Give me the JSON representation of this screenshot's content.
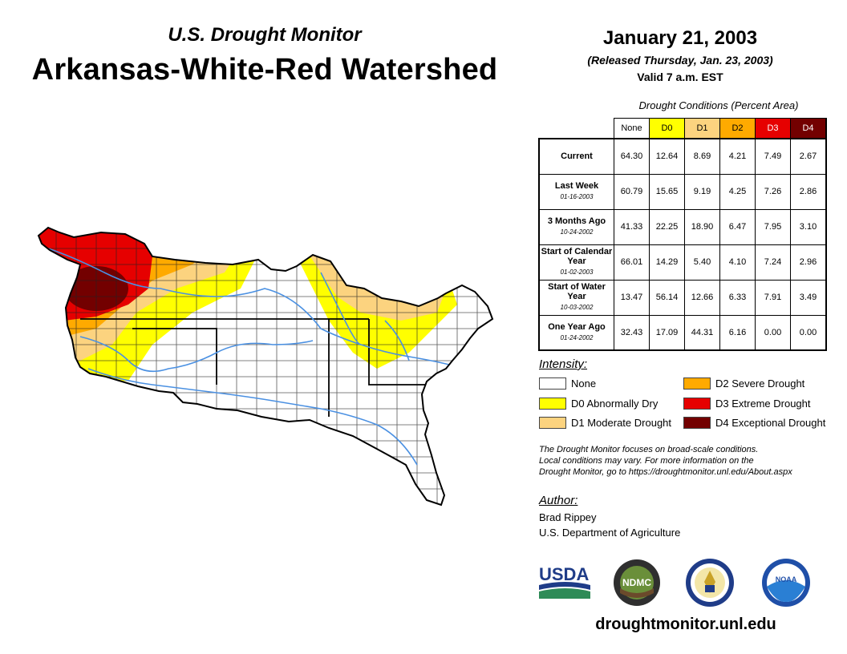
{
  "header": {
    "subtitle": "U.S. Drought Monitor",
    "region": "Arkansas-White-Red Watershed",
    "date": "January 21, 2003",
    "released": "(Released Thursday, Jan. 23, 2003)",
    "valid": "Valid 7 a.m. EST"
  },
  "table": {
    "caption": "Drought Conditions (Percent Area)",
    "columns": [
      {
        "label": "None",
        "color": "#ffffff",
        "text_color": "#000000"
      },
      {
        "label": "D0",
        "color": "#ffff00",
        "text_color": "#000000"
      },
      {
        "label": "D1",
        "color": "#fcd37f",
        "text_color": "#000000"
      },
      {
        "label": "D2",
        "color": "#ffaa00",
        "text_color": "#000000"
      },
      {
        "label": "D3",
        "color": "#e60000",
        "text_color": "#ffffff"
      },
      {
        "label": "D4",
        "color": "#730000",
        "text_color": "#ffffff"
      }
    ],
    "rows": [
      {
        "label": "Current",
        "date": "",
        "values": [
          "64.30",
          "12.64",
          "8.69",
          "4.21",
          "7.49",
          "2.67"
        ]
      },
      {
        "label": "Last Week",
        "date": "01-16-2003",
        "values": [
          "60.79",
          "15.65",
          "9.19",
          "4.25",
          "7.26",
          "2.86"
        ]
      },
      {
        "label": "3 Months Ago",
        "date": "10-24-2002",
        "values": [
          "41.33",
          "22.25",
          "18.90",
          "6.47",
          "7.95",
          "3.10"
        ]
      },
      {
        "label": "Start of Calendar Year",
        "date": "01-02-2003",
        "values": [
          "66.01",
          "14.29",
          "5.40",
          "4.10",
          "7.24",
          "2.96"
        ]
      },
      {
        "label": "Start of Water Year",
        "date": "10-03-2002",
        "values": [
          "13.47",
          "56.14",
          "12.66",
          "6.33",
          "7.91",
          "3.49"
        ]
      },
      {
        "label": "One Year Ago",
        "date": "01-24-2002",
        "values": [
          "32.43",
          "17.09",
          "44.31",
          "6.16",
          "0.00",
          "0.00"
        ]
      }
    ]
  },
  "legend": {
    "title": "Intensity:",
    "items": [
      {
        "label": "None",
        "color": "#ffffff"
      },
      {
        "label": "D0 Abnormally Dry",
        "color": "#ffff00"
      },
      {
        "label": "D1 Moderate Drought",
        "color": "#fcd37f"
      },
      {
        "label": "D2 Severe Drought",
        "color": "#ffaa00"
      },
      {
        "label": "D3 Extreme Drought",
        "color": "#e60000"
      },
      {
        "label": "D4 Exceptional Drought",
        "color": "#730000"
      }
    ]
  },
  "disclaimer": [
    "The Drought Monitor focuses on broad-scale conditions.",
    "Local conditions may vary. For more information on the",
    "Drought Monitor, go to https://droughtmonitor.unl.edu/About.aspx"
  ],
  "author": {
    "title": "Author:",
    "name": "Brad Rippey",
    "org": "U.S. Department of Agriculture"
  },
  "logos": {
    "usda": "USDA",
    "ndmc": "NDMC",
    "noaa": "NOAA"
  },
  "website": "droughtmonitor.unl.edu",
  "colors": {
    "river": "#4a90e2",
    "county_border": "#000000"
  }
}
